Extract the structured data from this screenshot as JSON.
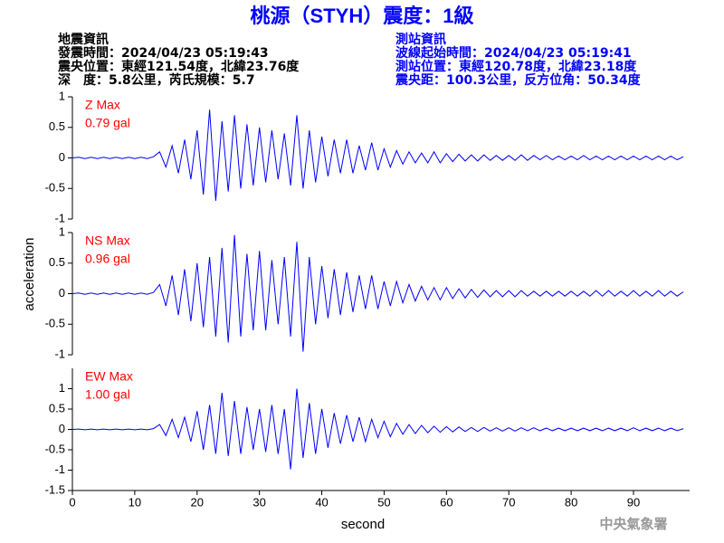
{
  "header": {
    "title": "桃源（STYH）震度：1級",
    "left": [
      "地震資訊",
      "發震時間：2024/04/23 05:19:43",
      "震央位置：東經121.54度，北緯23.76度",
      "深　度：5.8公里，芮氏規模：5.7"
    ],
    "right": [
      "測站資訊",
      "波線起始時間：2024/04/23 05:19:41",
      "測站位置：東經120.78度，北緯23.18度",
      "震央距：100.3公里，反方位角：50.34度"
    ]
  },
  "ylabel": "acceleration",
  "footer": "中央氣象署",
  "chart_data": [
    {
      "type": "line",
      "annotation": [
        "Z Max",
        "0.79 gal"
      ],
      "xlim": [
        0,
        99
      ],
      "ylim": [
        -1,
        1
      ],
      "yticks": [
        1,
        0.5,
        0,
        -0.5,
        -1
      ],
      "x": [
        0,
        1,
        2,
        3,
        4,
        5,
        6,
        7,
        8,
        9,
        10,
        11,
        12,
        13,
        14,
        15,
        16,
        17,
        18,
        19,
        20,
        21,
        22,
        23,
        24,
        25,
        26,
        27,
        28,
        29,
        30,
        31,
        32,
        33,
        34,
        35,
        36,
        37,
        38,
        39,
        40,
        41,
        42,
        43,
        44,
        45,
        46,
        47,
        48,
        49,
        50,
        51,
        52,
        53,
        54,
        55,
        56,
        57,
        58,
        59,
        60,
        61,
        62,
        63,
        64,
        65,
        66,
        67,
        68,
        69,
        70,
        71,
        72,
        73,
        74,
        75,
        76,
        77,
        78,
        79,
        80,
        81,
        82,
        83,
        84,
        85,
        86,
        87,
        88,
        89,
        90,
        91,
        92,
        93,
        94,
        95,
        96,
        97,
        98
      ],
      "series": [
        {
          "color": "#0000ff",
          "values": [
            0,
            0.01,
            -0.01,
            0.01,
            -0.01,
            0.01,
            -0.01,
            0.01,
            -0.01,
            0.01,
            -0.01,
            0.01,
            -0.01,
            0.02,
            0.1,
            -0.15,
            0.2,
            -0.25,
            0.3,
            -0.35,
            0.45,
            -0.6,
            0.79,
            -0.7,
            0.6,
            -0.55,
            0.7,
            -0.5,
            0.55,
            -0.45,
            0.5,
            -0.4,
            0.45,
            -0.35,
            0.4,
            -0.45,
            0.7,
            -0.5,
            0.45,
            -0.4,
            0.35,
            -0.3,
            0.3,
            -0.25,
            0.3,
            -0.25,
            0.2,
            -0.2,
            0.25,
            -0.2,
            0.15,
            -0.15,
            0.12,
            -0.1,
            0.1,
            -0.08,
            0.08,
            -0.08,
            0.1,
            -0.08,
            0.07,
            -0.06,
            0.06,
            -0.05,
            0.05,
            -0.05,
            0.05,
            -0.04,
            0.04,
            -0.04,
            0.04,
            -0.04,
            0.05,
            -0.04,
            0.04,
            -0.03,
            0.04,
            -0.03,
            0.03,
            -0.03,
            0.03,
            -0.03,
            0.04,
            -0.03,
            0.03,
            -0.03,
            0.03,
            -0.03,
            0.03,
            -0.03,
            0.03,
            -0.03,
            0.03,
            -0.03,
            0.03,
            -0.03,
            0.03,
            -0.03,
            0.02
          ]
        }
      ]
    },
    {
      "type": "line",
      "annotation": [
        "NS Max",
        "0.96 gal"
      ],
      "xlim": [
        0,
        99
      ],
      "ylim": [
        -1,
        1
      ],
      "yticks": [
        1,
        0.5,
        0,
        -0.5,
        -1
      ],
      "x": [
        0,
        1,
        2,
        3,
        4,
        5,
        6,
        7,
        8,
        9,
        10,
        11,
        12,
        13,
        14,
        15,
        16,
        17,
        18,
        19,
        20,
        21,
        22,
        23,
        24,
        25,
        26,
        27,
        28,
        29,
        30,
        31,
        32,
        33,
        34,
        35,
        36,
        37,
        38,
        39,
        40,
        41,
        42,
        43,
        44,
        45,
        46,
        47,
        48,
        49,
        50,
        51,
        52,
        53,
        54,
        55,
        56,
        57,
        58,
        59,
        60,
        61,
        62,
        63,
        64,
        65,
        66,
        67,
        68,
        69,
        70,
        71,
        72,
        73,
        74,
        75,
        76,
        77,
        78,
        79,
        80,
        81,
        82,
        83,
        84,
        85,
        86,
        87,
        88,
        89,
        90,
        91,
        92,
        93,
        94,
        95,
        96,
        97,
        98
      ],
      "series": [
        {
          "color": "#0000ff",
          "values": [
            0,
            0.01,
            -0.01,
            0.01,
            -0.01,
            0.01,
            -0.01,
            0.01,
            -0.01,
            0.01,
            -0.01,
            0.01,
            -0.01,
            0.02,
            0.15,
            -0.2,
            0.3,
            -0.35,
            0.4,
            -0.45,
            0.5,
            -0.55,
            0.6,
            -0.7,
            0.75,
            -0.8,
            0.96,
            -0.7,
            0.65,
            -0.6,
            0.7,
            -0.6,
            0.55,
            -0.5,
            0.6,
            -0.7,
            0.85,
            -0.95,
            0.6,
            -0.5,
            0.45,
            -0.4,
            0.4,
            -0.35,
            0.35,
            -0.3,
            0.3,
            -0.25,
            0.3,
            -0.25,
            0.2,
            -0.2,
            0.2,
            -0.15,
            0.15,
            -0.12,
            0.12,
            -0.1,
            0.1,
            -0.1,
            0.1,
            -0.08,
            0.08,
            -0.07,
            0.07,
            -0.06,
            0.06,
            -0.05,
            0.05,
            -0.05,
            0.05,
            -0.05,
            0.05,
            -0.04,
            0.04,
            -0.04,
            0.04,
            -0.04,
            0.04,
            -0.04,
            0.04,
            -0.04,
            0.04,
            -0.04,
            0.05,
            -0.04,
            0.05,
            -0.04,
            0.04,
            -0.04,
            0.05,
            -0.04,
            0.04,
            -0.04,
            0.05,
            -0.04,
            0.04,
            -0.04,
            0.03
          ]
        }
      ]
    },
    {
      "type": "line",
      "annotation": [
        "EW Max",
        "1.00 gal"
      ],
      "xlabel": "second",
      "xlim": [
        0,
        99
      ],
      "ylim": [
        -1.5,
        1.5
      ],
      "yticks": [
        1,
        0.5,
        0,
        -0.5,
        -1,
        -1.5
      ],
      "xticks": [
        0,
        10,
        20,
        30,
        40,
        50,
        60,
        70,
        80,
        90
      ],
      "x": [
        0,
        1,
        2,
        3,
        4,
        5,
        6,
        7,
        8,
        9,
        10,
        11,
        12,
        13,
        14,
        15,
        16,
        17,
        18,
        19,
        20,
        21,
        22,
        23,
        24,
        25,
        26,
        27,
        28,
        29,
        30,
        31,
        32,
        33,
        34,
        35,
        36,
        37,
        38,
        39,
        40,
        41,
        42,
        43,
        44,
        45,
        46,
        47,
        48,
        49,
        50,
        51,
        52,
        53,
        54,
        55,
        56,
        57,
        58,
        59,
        60,
        61,
        62,
        63,
        64,
        65,
        66,
        67,
        68,
        69,
        70,
        71,
        72,
        73,
        74,
        75,
        76,
        77,
        78,
        79,
        80,
        81,
        82,
        83,
        84,
        85,
        86,
        87,
        88,
        89,
        90,
        91,
        92,
        93,
        94,
        95,
        96,
        97,
        98
      ],
      "series": [
        {
          "color": "#0000ff",
          "values": [
            0,
            0.01,
            -0.01,
            0.01,
            -0.01,
            0.01,
            -0.01,
            0.01,
            -0.01,
            0.01,
            -0.01,
            0.01,
            -0.01,
            0.02,
            0.12,
            -0.15,
            0.25,
            -0.2,
            0.3,
            -0.3,
            0.45,
            -0.5,
            0.6,
            -0.6,
            0.9,
            -0.65,
            0.7,
            -0.6,
            0.55,
            -0.5,
            0.5,
            -0.55,
            0.6,
            -0.6,
            0.5,
            -0.98,
            1.0,
            -0.7,
            0.65,
            -0.6,
            0.5,
            -0.45,
            0.4,
            -0.35,
            0.35,
            -0.3,
            0.3,
            -0.3,
            0.25,
            -0.2,
            0.2,
            -0.18,
            0.15,
            -0.12,
            0.12,
            -0.1,
            0.1,
            -0.08,
            0.08,
            -0.07,
            0.07,
            -0.06,
            0.06,
            -0.05,
            0.05,
            -0.05,
            0.05,
            -0.04,
            0.04,
            -0.04,
            0.04,
            -0.04,
            0.04,
            -0.03,
            0.04,
            -0.03,
            0.03,
            -0.03,
            0.03,
            -0.03,
            0.03,
            -0.03,
            0.03,
            -0.03,
            0.03,
            -0.03,
            0.03,
            -0.03,
            0.03,
            -0.03,
            0.04,
            -0.03,
            0.03,
            -0.03,
            0.03,
            -0.03,
            0.03,
            -0.03,
            0.02
          ]
        }
      ]
    }
  ]
}
